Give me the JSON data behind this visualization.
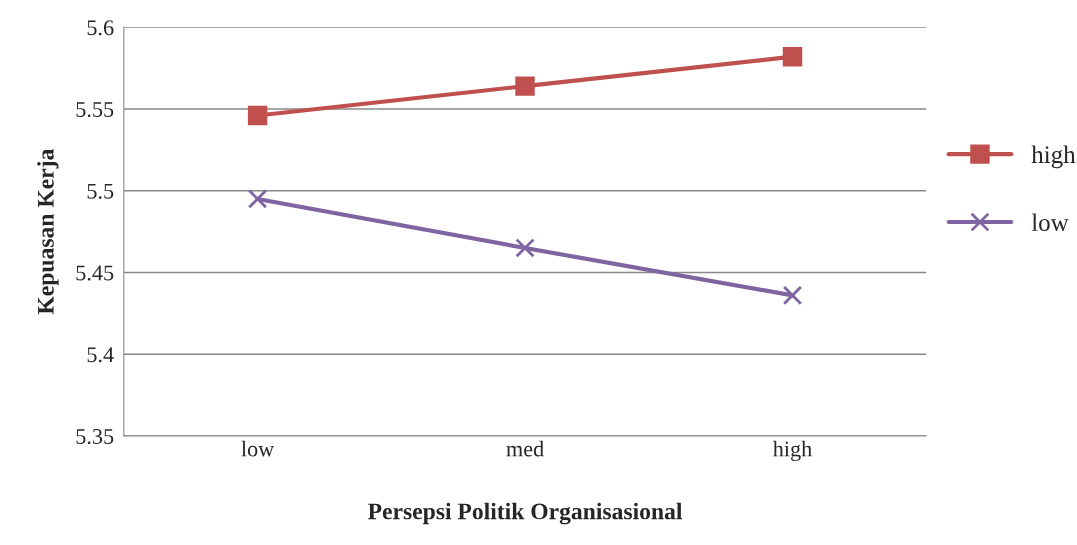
{
  "chart_data": {
    "type": "line",
    "xlabel": "Persepsi Politik Organisasional",
    "ylabel": "Kepuasan Kerja",
    "categories": [
      "low",
      "med",
      "high"
    ],
    "series": [
      {
        "name": "high",
        "color": "#c0504d",
        "marker": "square",
        "values": [
          5.546,
          5.564,
          5.582
        ]
      },
      {
        "name": "low",
        "color": "#8064a2",
        "marker": "cross",
        "values": [
          5.495,
          5.465,
          5.436
        ]
      }
    ],
    "ylim": [
      5.35,
      5.6
    ],
    "yticks": [
      5.35,
      5.4,
      5.45,
      5.5,
      5.55,
      5.6
    ],
    "grid": "y",
    "legend": "right",
    "line_style": "solid"
  }
}
